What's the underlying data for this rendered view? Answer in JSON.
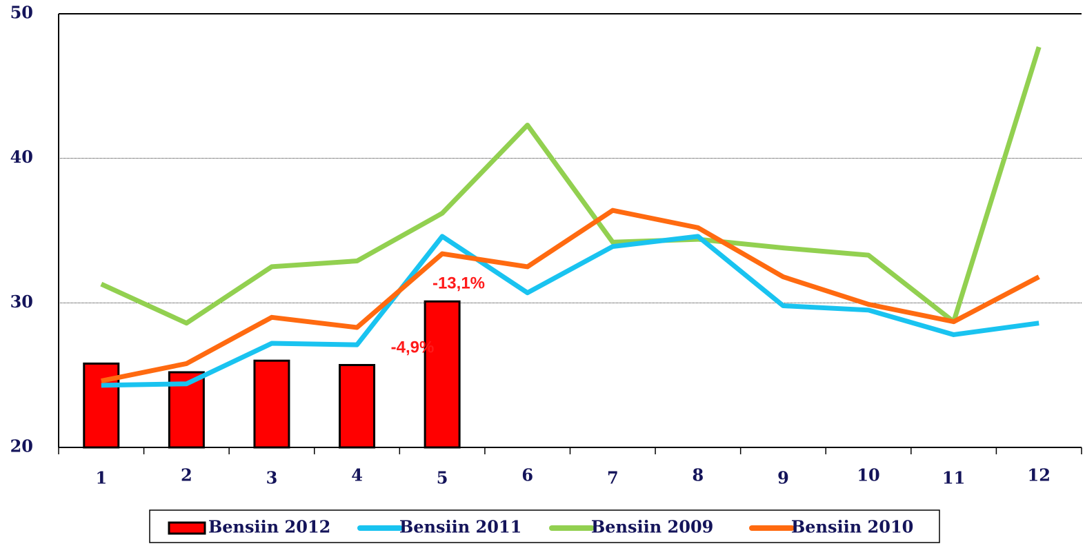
{
  "chart_data": {
    "type": "bar_line",
    "categories": [
      "1",
      "2",
      "3",
      "4",
      "5",
      "6",
      "7",
      "8",
      "9",
      "10",
      "11",
      "12"
    ],
    "series": [
      {
        "name": "Bensiin 2012",
        "type": "bar",
        "color": "#ff0000",
        "values": [
          25.8,
          25.2,
          26.0,
          25.7,
          30.1,
          null,
          null,
          null,
          null,
          null,
          null,
          null
        ]
      },
      {
        "name": "Bensiin 2011",
        "type": "line",
        "color": "#19c3f0",
        "values": [
          24.3,
          24.4,
          27.2,
          27.1,
          34.6,
          30.7,
          33.9,
          34.6,
          29.8,
          29.5,
          27.8,
          28.6
        ]
      },
      {
        "name": "Bensiin 2009",
        "type": "line",
        "color": "#92d050",
        "values": [
          31.3,
          28.6,
          32.5,
          32.9,
          36.2,
          42.3,
          34.2,
          34.4,
          33.8,
          33.3,
          28.7,
          47.7
        ]
      },
      {
        "name": "Bensiin 2010",
        "type": "line",
        "color": "#ff6a10",
        "values": [
          24.6,
          25.8,
          29.0,
          28.3,
          33.4,
          32.5,
          36.4,
          35.2,
          31.8,
          29.9,
          28.7,
          31.8
        ]
      }
    ],
    "annotations": [
      "-13,1%",
      "-4,9%"
    ],
    "ylim": [
      20,
      50
    ],
    "yticks": [
      20,
      30,
      40,
      50
    ],
    "grid": true
  }
}
